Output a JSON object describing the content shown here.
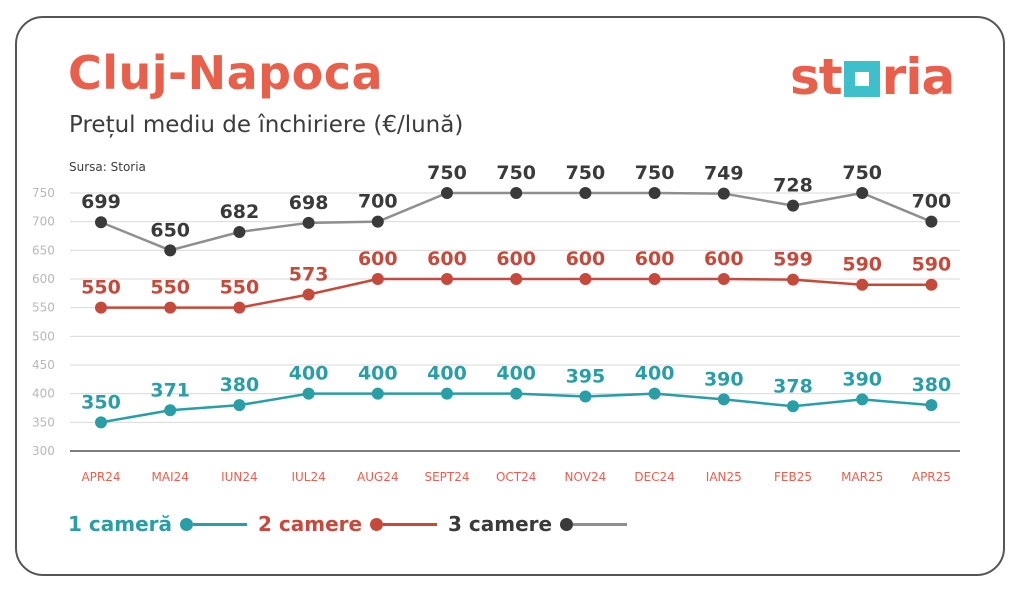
{
  "title": "Cluj-Napoca",
  "subtitle": "Prețul mediu de închiriere (€/lună)",
  "source": "Sursa: Storia",
  "logo": {
    "text_before": "st",
    "text_after": "ria"
  },
  "colors": {
    "title": "#e8604c",
    "one_room": "#2a9ea7",
    "two_rooms": "#c64a3c",
    "three_rooms_line": "#8f8f8f",
    "three_rooms_marker": "#3a3a3a",
    "three_rooms_label": "#3a3a3a",
    "axis_tick": "#b8b8b8",
    "x_tick": "#e8604c",
    "grid": "#d9d9d9"
  },
  "chart_data": {
    "type": "line",
    "title": "Cluj-Napoca",
    "subtitle": "Prețul mediu de închiriere (€/lună)",
    "categories": [
      "APR24",
      "MAI24",
      "IUN24",
      "IUL24",
      "AUG24",
      "SEPT24",
      "OCT24",
      "NOV24",
      "DEC24",
      "IAN25",
      "FEB25",
      "MAR25",
      "APR25"
    ],
    "yticks": [
      300,
      350,
      400,
      450,
      500,
      550,
      600,
      650,
      700,
      750
    ],
    "ylim": [
      300,
      775
    ],
    "grid": true,
    "legend_placement": "bottom-left",
    "series": [
      {
        "name": "1 cameră",
        "values": [
          350,
          371,
          380,
          400,
          400,
          400,
          400,
          395,
          400,
          390,
          378,
          390,
          380
        ]
      },
      {
        "name": "2 camere",
        "values": [
          550,
          550,
          550,
          573,
          600,
          600,
          600,
          600,
          600,
          600,
          599,
          590,
          590
        ]
      },
      {
        "name": "3 camere",
        "values": [
          699,
          650,
          682,
          698,
          700,
          750,
          750,
          750,
          750,
          749,
          728,
          750,
          700
        ]
      }
    ]
  }
}
